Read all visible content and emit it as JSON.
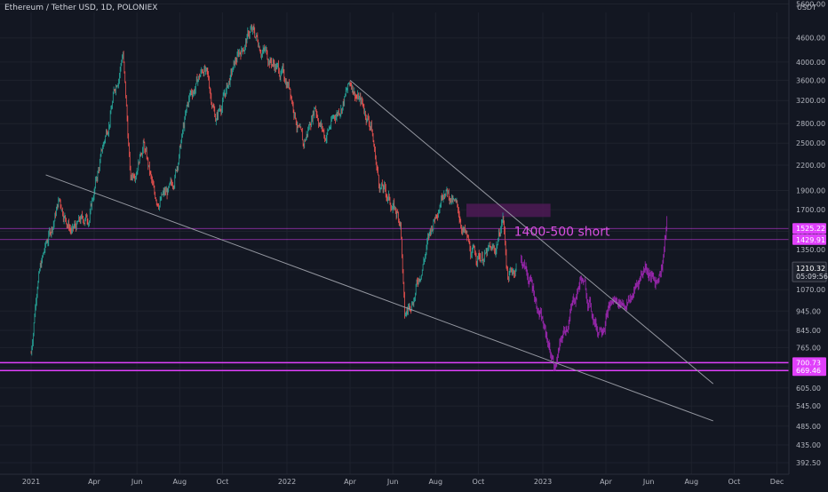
{
  "header": {
    "title": "Ethereum / Tether USD, 1D, POLONIEX",
    "currency": "USDT"
  },
  "chart_data": {
    "type": "candlestick",
    "scale": "log",
    "ylim": [
      375,
      5500
    ],
    "y_ticks": [
      "5600.00",
      "4600.00",
      "4000.00",
      "3600.00",
      "3200.00",
      "2800.00",
      "2500.00",
      "2200.00",
      "1900.00",
      "1700.00",
      "1500.00",
      "1350.00",
      "1200.00",
      "1070.00",
      "945.00",
      "845.00",
      "765.00",
      "680.00",
      "605.00",
      "545.00",
      "485.00",
      "435.00",
      "392.50"
    ],
    "x_ticks": [
      "2021",
      "Apr",
      "Jun",
      "Aug",
      "Oct",
      "2022",
      "Apr",
      "Jun",
      "Aug",
      "Oct",
      "2023",
      "Apr",
      "Jun",
      "Aug",
      "Oct",
      "Dec"
    ],
    "price_path": [
      {
        "date": "2021-01-01",
        "price": 740
      },
      {
        "date": "2021-01-10",
        "price": 1150
      },
      {
        "date": "2021-02-10",
        "price": 1800
      },
      {
        "date": "2021-03-01",
        "price": 1500
      },
      {
        "date": "2021-03-25",
        "price": 1650
      },
      {
        "date": "2021-04-15",
        "price": 2500
      },
      {
        "date": "2021-05-12",
        "price": 4300
      },
      {
        "date": "2021-05-23",
        "price": 2000
      },
      {
        "date": "2021-06-10",
        "price": 2550
      },
      {
        "date": "2021-06-26",
        "price": 1800
      },
      {
        "date": "2021-07-20",
        "price": 1880
      },
      {
        "date": "2021-08-15",
        "price": 3250
      },
      {
        "date": "2021-09-05",
        "price": 3900
      },
      {
        "date": "2021-09-22",
        "price": 2900
      },
      {
        "date": "2021-10-25",
        "price": 4200
      },
      {
        "date": "2021-11-10",
        "price": 4800
      },
      {
        "date": "2021-12-10",
        "price": 4050
      },
      {
        "date": "2022-01-05",
        "price": 3500
      },
      {
        "date": "2022-01-24",
        "price": 2400
      },
      {
        "date": "2022-02-10",
        "price": 3150
      },
      {
        "date": "2022-02-24",
        "price": 2600
      },
      {
        "date": "2022-04-03",
        "price": 3550
      },
      {
        "date": "2022-05-01",
        "price": 2800
      },
      {
        "date": "2022-05-12",
        "price": 2000
      },
      {
        "date": "2022-06-12",
        "price": 1600
      },
      {
        "date": "2022-06-18",
        "price": 900
      },
      {
        "date": "2022-07-05",
        "price": 1100
      },
      {
        "date": "2022-08-13",
        "price": 2000
      },
      {
        "date": "2022-09-06",
        "price": 1600
      },
      {
        "date": "2022-09-21",
        "price": 1300
      },
      {
        "date": "2022-10-25",
        "price": 1330
      },
      {
        "date": "2022-11-05",
        "price": 1650
      },
      {
        "date": "2022-11-12",
        "price": 1150
      },
      {
        "date": "2022-11-25",
        "price": 1240
      }
    ],
    "projection_path": [
      {
        "date": "2022-12-01",
        "price": 1280
      },
      {
        "date": "2022-12-20",
        "price": 1050
      },
      {
        "date": "2023-01-05",
        "price": 820
      },
      {
        "date": "2023-01-18",
        "price": 690
      },
      {
        "date": "2023-02-10",
        "price": 950
      },
      {
        "date": "2023-02-25",
        "price": 1150
      },
      {
        "date": "2023-03-20",
        "price": 850
      },
      {
        "date": "2023-04-10",
        "price": 1000
      },
      {
        "date": "2023-05-05",
        "price": 1000
      },
      {
        "date": "2023-05-28",
        "price": 1250
      },
      {
        "date": "2023-06-10",
        "price": 1100
      },
      {
        "date": "2023-06-20",
        "price": 1250
      },
      {
        "date": "2023-06-28",
        "price": 1610
      }
    ],
    "trendlines": [
      {
        "from": {
          "date": "2021-01-22",
          "price": 2080
        },
        "to": {
          "date": "2023-09-01",
          "price": 500
        }
      },
      {
        "from": {
          "date": "2022-04-01",
          "price": 3600
        },
        "to": {
          "date": "2023-09-01",
          "price": 620
        }
      }
    ],
    "horizontal_levels": [
      {
        "price": 700.73,
        "label": "700.73",
        "color": "#e040fb"
      },
      {
        "price": 669.46,
        "label": "669.46",
        "color": "#e040fb"
      },
      {
        "price": 1525.22,
        "label": "1525.22",
        "color": "#e040fb"
      },
      {
        "price": 1429.91,
        "label": "1429.91",
        "color": "#e040fb"
      }
    ],
    "current_price": {
      "label": "1210.32",
      "countdown": "05:09:56",
      "price": 1210.32
    },
    "zone": {
      "from": "2022-09-14",
      "to": "2023-01-12",
      "top": 1760,
      "bottom": 1630
    },
    "annotation": {
      "text": "1400-500 short",
      "date": "2022-11-21",
      "price": 1460
    },
    "colors": {
      "up": "#26a69a",
      "down": "#ef5350",
      "projection": "#9c27b0",
      "level": "#e040fb",
      "trend": "#9598a1"
    }
  }
}
